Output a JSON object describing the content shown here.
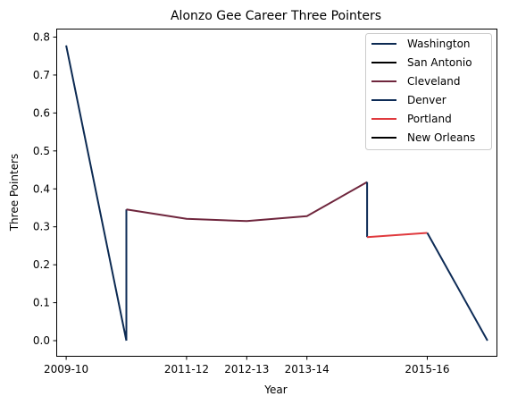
{
  "chart_data": {
    "type": "line",
    "title": "Alonzo Gee Career Three Pointers",
    "xlabel": "Year",
    "ylabel": "Three Pointers",
    "x_ticks": [
      "2009-10",
      "2011-12",
      "2012-13",
      "2013-14",
      "2015-16"
    ],
    "xlim": [
      2009.85,
      2017.15
    ],
    "ylim": [
      -0.04,
      0.82
    ],
    "y_ticks": [
      0.0,
      0.1,
      0.2,
      0.3,
      0.4,
      0.5,
      0.6,
      0.7,
      0.8
    ],
    "grid": false,
    "legend_position": "top-right",
    "series": [
      {
        "name": "Washington",
        "color": "#0c2a52",
        "x": [
          2010,
          2011
        ],
        "y": [
          0.778,
          0.0
        ]
      },
      {
        "name": "San Antonio",
        "color": "#000000",
        "x": [
          2011,
          2011
        ],
        "y": [
          0.0,
          0.0
        ]
      },
      {
        "name": "Denver",
        "color": "#0d2b56",
        "x": [
          2011,
          2011
        ],
        "y": [
          0.0,
          0.346
        ]
      },
      {
        "name": "Cleveland",
        "color": "#6f263d",
        "x": [
          2011,
          2012,
          2013,
          2014,
          2015
        ],
        "y": [
          0.346,
          0.321,
          0.315,
          0.328,
          0.418
        ]
      },
      {
        "name": "Denver",
        "color": "#0d2b56",
        "x": [
          2015,
          2015
        ],
        "y": [
          0.418,
          0.273
        ]
      },
      {
        "name": "Portland",
        "color": "#e03a3e",
        "x": [
          2015,
          2016
        ],
        "y": [
          0.273,
          0.284
        ]
      },
      {
        "name": "Denver",
        "color": "#0d2b56",
        "x": [
          2016,
          2017
        ],
        "y": [
          0.284,
          0.0
        ]
      }
    ],
    "legend": [
      {
        "name": "Washington",
        "color": "#0c2a52"
      },
      {
        "name": "San Antonio",
        "color": "#000000"
      },
      {
        "name": "Cleveland",
        "color": "#6f263d"
      },
      {
        "name": "Denver",
        "color": "#0d2b56"
      },
      {
        "name": "Portland",
        "color": "#e03a3e"
      },
      {
        "name": "New Orleans",
        "color": "#000000"
      }
    ]
  }
}
